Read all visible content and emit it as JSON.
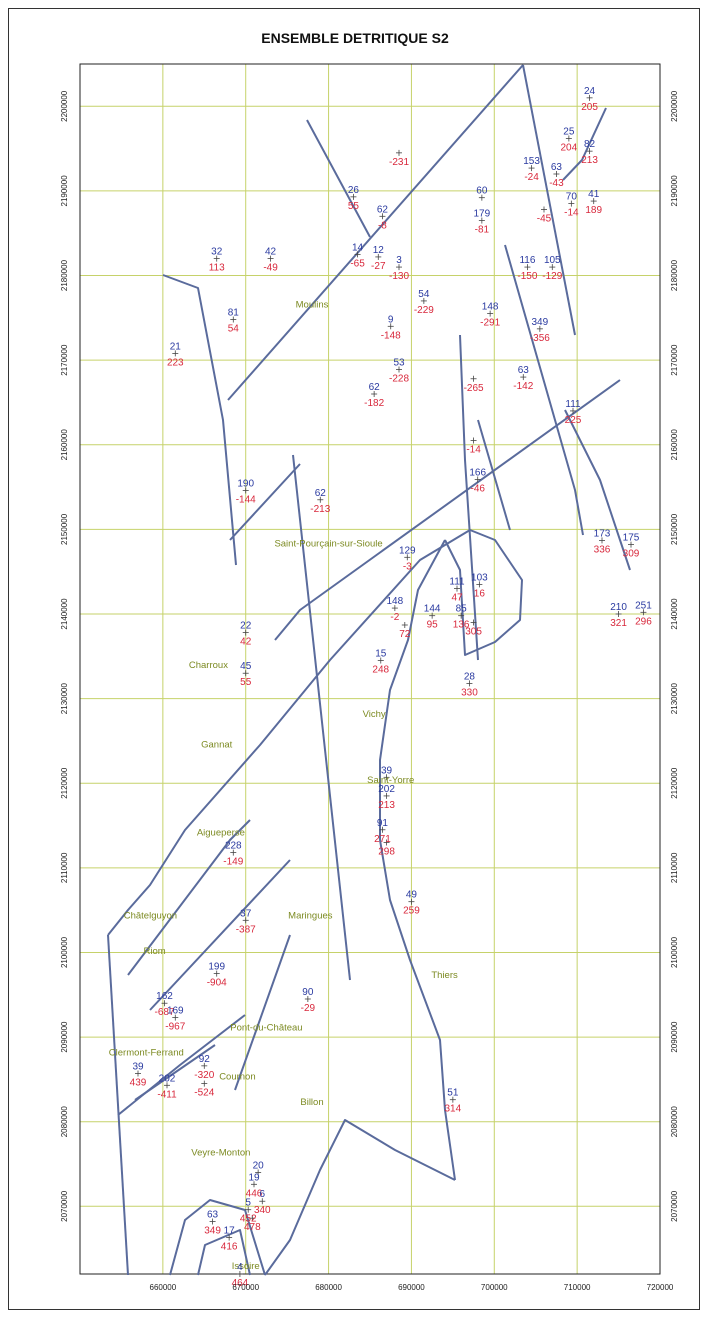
{
  "title": "ENSEMBLE DETRITIQUE  S2",
  "colors": {
    "border": "#5a6b9c",
    "grid": "#c6d26a",
    "town": "#7c8a22",
    "elev": "#2a3aa0",
    "depth": "#d8283c",
    "mark": "#444444"
  },
  "x_ticks": [
    "660000",
    "670000",
    "680000",
    "690000",
    "700000",
    "710000",
    "720000"
  ],
  "y_ticks": [
    "2200000",
    "2190000",
    "2180000",
    "2170000",
    "2160000",
    "2150000",
    "2140000",
    "2130000",
    "2120000",
    "2110000",
    "2100000",
    "2090000",
    "2080000",
    "2070000"
  ],
  "towns": [
    {
      "name": "Moulins",
      "x": 678000,
      "y": 2176200
    },
    {
      "name": "Saint-Pourçain-sur-Sioule",
      "x": 680000,
      "y": 2148000
    },
    {
      "name": "Charroux",
      "x": 665500,
      "y": 2133600
    },
    {
      "name": "Vichy",
      "x": 685500,
      "y": 2127800
    },
    {
      "name": "Gannat",
      "x": 666500,
      "y": 2124200
    },
    {
      "name": "Saint-Yorre",
      "x": 687500,
      "y": 2120000
    },
    {
      "name": "Aigueperse",
      "x": 667000,
      "y": 2113800
    },
    {
      "name": "Châtelguyon",
      "x": 658500,
      "y": 2104000
    },
    {
      "name": "Maringues",
      "x": 677800,
      "y": 2104000
    },
    {
      "name": "Riom",
      "x": 659000,
      "y": 2099800
    },
    {
      "name": "Thiers",
      "x": 694000,
      "y": 2097000
    },
    {
      "name": "Pont-du-Château",
      "x": 672500,
      "y": 2090800
    },
    {
      "name": "Clermont-Ferrand",
      "x": 658000,
      "y": 2087800
    },
    {
      "name": "Cournon",
      "x": 669000,
      "y": 2085000
    },
    {
      "name": "Billon",
      "x": 678000,
      "y": 2082000
    },
    {
      "name": "Veyre-Monton",
      "x": 667000,
      "y": 2076000
    },
    {
      "name": "Issoire",
      "x": 670000,
      "y": 2062600
    }
  ],
  "wells": [
    {
      "x": 711500,
      "y": 2201000,
      "elev": "24",
      "depth": "205"
    },
    {
      "x": 709000,
      "y": 2196200,
      "elev": "25",
      "depth": "204"
    },
    {
      "x": 711500,
      "y": 2194700,
      "elev": "82",
      "depth": "213"
    },
    {
      "x": 704500,
      "y": 2192700,
      "elev": "153",
      "depth": "-24"
    },
    {
      "x": 707500,
      "y": 2192000,
      "elev": "63",
      "depth": "-43"
    },
    {
      "x": 698500,
      "y": 2189200,
      "elev": "60",
      "depth": ""
    },
    {
      "x": 698500,
      "y": 2186500,
      "elev": "179",
      "depth": "-81"
    },
    {
      "x": 706000,
      "y": 2187800,
      "elev": "",
      "depth": "-45"
    },
    {
      "x": 709300,
      "y": 2188500,
      "elev": "70",
      "depth": "-14"
    },
    {
      "x": 712000,
      "y": 2188800,
      "elev": "41",
      "depth": "189"
    },
    {
      "x": 683000,
      "y": 2189300,
      "elev": "26",
      "depth": "55"
    },
    {
      "x": 686500,
      "y": 2187000,
      "elev": "62",
      "depth": "-8"
    },
    {
      "x": 688500,
      "y": 2194500,
      "elev": "",
      "depth": "-231"
    },
    {
      "x": 683500,
      "y": 2182500,
      "elev": "14",
      "depth": "-65"
    },
    {
      "x": 686000,
      "y": 2182200,
      "elev": "12",
      "depth": "-27"
    },
    {
      "x": 688500,
      "y": 2181000,
      "elev": "3",
      "depth": "-130"
    },
    {
      "x": 666500,
      "y": 2182000,
      "elev": "32",
      "depth": "113"
    },
    {
      "x": 673000,
      "y": 2182000,
      "elev": "42",
      "depth": "-49"
    },
    {
      "x": 704000,
      "y": 2181000,
      "elev": "116",
      "depth": "-150"
    },
    {
      "x": 707000,
      "y": 2181000,
      "elev": "105",
      "depth": "-129"
    },
    {
      "x": 691500,
      "y": 2177000,
      "elev": "54",
      "depth": "-229"
    },
    {
      "x": 699500,
      "y": 2175500,
      "elev": "148",
      "depth": "-291"
    },
    {
      "x": 705500,
      "y": 2173700,
      "elev": "349",
      "depth": "-356"
    },
    {
      "x": 668500,
      "y": 2174800,
      "elev": "81",
      "depth": "54"
    },
    {
      "x": 687500,
      "y": 2174000,
      "elev": "9",
      "depth": "-148"
    },
    {
      "x": 661500,
      "y": 2170800,
      "elev": "21",
      "depth": "223"
    },
    {
      "x": 688500,
      "y": 2168900,
      "elev": "53",
      "depth": "-228"
    },
    {
      "x": 697500,
      "y": 2167800,
      "elev": "",
      "depth": "-265"
    },
    {
      "x": 703500,
      "y": 2168000,
      "elev": "63",
      "depth": "-142"
    },
    {
      "x": 685500,
      "y": 2166000,
      "elev": "62",
      "depth": "-182"
    },
    {
      "x": 709500,
      "y": 2164000,
      "elev": "111",
      "depth": "225"
    },
    {
      "x": 697500,
      "y": 2160500,
      "elev": "",
      "depth": "-14"
    },
    {
      "x": 698000,
      "y": 2155900,
      "elev": "166",
      "depth": "-46"
    },
    {
      "x": 670000,
      "y": 2154600,
      "elev": "190",
      "depth": "-144"
    },
    {
      "x": 679000,
      "y": 2153500,
      "elev": "62",
      "depth": "-213"
    },
    {
      "x": 713000,
      "y": 2148700,
      "elev": "173",
      "depth": "336"
    },
    {
      "x": 716500,
      "y": 2148200,
      "elev": "175",
      "depth": "309"
    },
    {
      "x": 689500,
      "y": 2146700,
      "elev": "129",
      "depth": "-3"
    },
    {
      "x": 695500,
      "y": 2143000,
      "elev": "111",
      "depth": "47"
    },
    {
      "x": 698200,
      "y": 2143500,
      "elev": "103",
      "depth": "16"
    },
    {
      "x": 688000,
      "y": 2140700,
      "elev": "148",
      "depth": "-2"
    },
    {
      "x": 715000,
      "y": 2140000,
      "elev": "210",
      "depth": "321"
    },
    {
      "x": 718000,
      "y": 2140200,
      "elev": "251",
      "depth": "296"
    },
    {
      "x": 692500,
      "y": 2139800,
      "elev": "144",
      "depth": "95"
    },
    {
      "x": 696000,
      "y": 2139800,
      "elev": "85",
      "depth": "136"
    },
    {
      "x": 689200,
      "y": 2138700,
      "elev": "",
      "depth": "72"
    },
    {
      "x": 697500,
      "y": 2139000,
      "elev": "",
      "depth": "305"
    },
    {
      "x": 670000,
      "y": 2137800,
      "elev": "22",
      "depth": "42"
    },
    {
      "x": 686300,
      "y": 2134500,
      "elev": "15",
      "depth": "248"
    },
    {
      "x": 670000,
      "y": 2133000,
      "elev": "45",
      "depth": "55"
    },
    {
      "x": 697000,
      "y": 2131800,
      "elev": "28",
      "depth": "330"
    },
    {
      "x": 687000,
      "y": 2120700,
      "elev": "39",
      "depth": ""
    },
    {
      "x": 687000,
      "y": 2118500,
      "elev": "202",
      "depth": "213"
    },
    {
      "x": 686500,
      "y": 2114500,
      "elev": "91",
      "depth": "271"
    },
    {
      "x": 687000,
      "y": 2113000,
      "elev": "",
      "depth": "298"
    },
    {
      "x": 668500,
      "y": 2111800,
      "elev": "228",
      "depth": "-149"
    },
    {
      "x": 690000,
      "y": 2106000,
      "elev": "49",
      "depth": "259"
    },
    {
      "x": 670000,
      "y": 2103800,
      "elev": "37",
      "depth": "-387"
    },
    {
      "x": 666500,
      "y": 2097500,
      "elev": "199",
      "depth": "-904"
    },
    {
      "x": 660200,
      "y": 2094000,
      "elev": "162",
      "depth": "-687"
    },
    {
      "x": 661500,
      "y": 2092300,
      "elev": "169",
      "depth": "-967"
    },
    {
      "x": 677500,
      "y": 2094500,
      "elev": "90",
      "depth": "-29"
    },
    {
      "x": 665000,
      "y": 2086600,
      "elev": "92",
      "depth": "-320"
    },
    {
      "x": 657000,
      "y": 2085700,
      "elev": "39",
      "depth": "439"
    },
    {
      "x": 660500,
      "y": 2084300,
      "elev": "202",
      "depth": "-411"
    },
    {
      "x": 665000,
      "y": 2084500,
      "elev": "",
      "depth": "-524"
    },
    {
      "x": 695000,
      "y": 2082600,
      "elev": "51",
      "depth": "314"
    },
    {
      "x": 671500,
      "y": 2074000,
      "elev": "20",
      "depth": ""
    },
    {
      "x": 671000,
      "y": 2072600,
      "elev": "19",
      "depth": "446"
    },
    {
      "x": 672000,
      "y": 2070600,
      "elev": "6",
      "depth": "340"
    },
    {
      "x": 670300,
      "y": 2069600,
      "elev": "5",
      "depth": "452"
    },
    {
      "x": 670800,
      "y": 2068600,
      "elev": "",
      "depth": "478"
    },
    {
      "x": 666000,
      "y": 2068200,
      "elev": "63",
      "depth": "349"
    },
    {
      "x": 668000,
      "y": 2066300,
      "elev": "17",
      "depth": "416"
    },
    {
      "x": 669300,
      "y": 2062000,
      "elev": "4",
      "depth": "464"
    }
  ]
}
